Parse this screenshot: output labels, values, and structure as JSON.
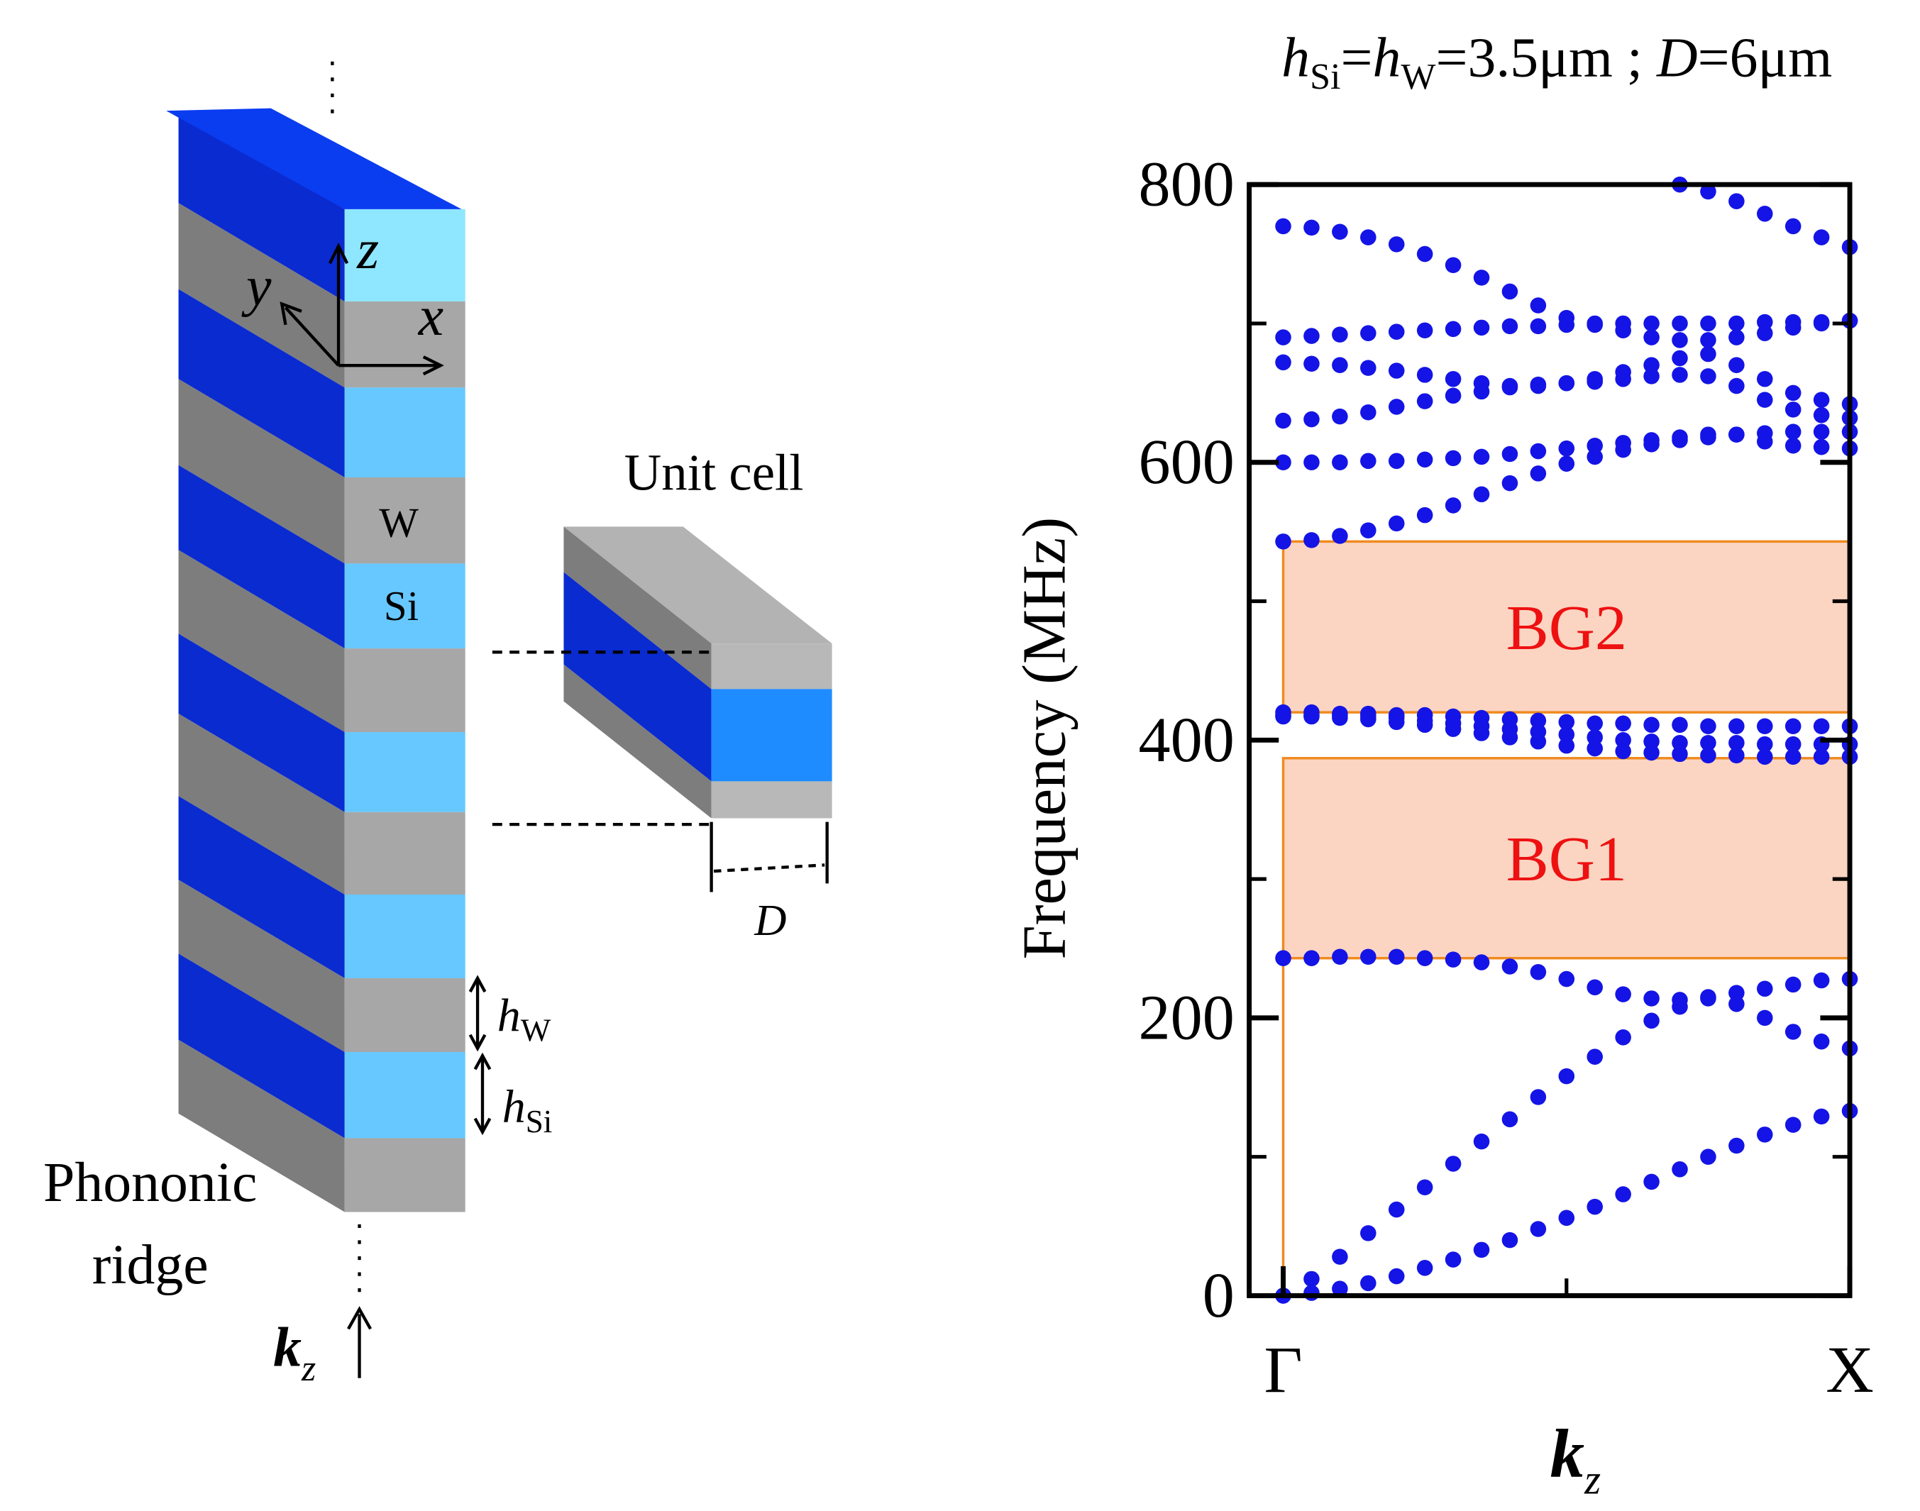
{
  "diagram": {
    "axes": [
      "z",
      "y",
      "x"
    ],
    "layer_w": "W",
    "layer_si": "Si",
    "unit_cell": "Unit cell",
    "period": "D",
    "h_w": [
      "h",
      "W"
    ],
    "h_si": [
      "h",
      "Si"
    ],
    "ridge": [
      "Phononic",
      "ridge"
    ],
    "kz": [
      "k",
      "z"
    ]
  },
  "chart_data": {
    "type": "scatter",
    "title": [
      "h",
      "Si",
      "=",
      "h",
      "W",
      "=3.5μm ; ",
      "D",
      "=6μm"
    ],
    "ylabel": "Frequency (MHz)",
    "xlabel": [
      "k",
      "z"
    ],
    "xlim": [
      -0.06,
      1
    ],
    "ylim": [
      0,
      800
    ],
    "xticks": [
      {
        "value": 0,
        "label": "Γ"
      },
      {
        "value": 1,
        "label": "X"
      }
    ],
    "xminorticks": [
      0.5
    ],
    "yticks": [
      0,
      200,
      400,
      600,
      800
    ],
    "yminorticks": [
      100,
      300,
      500,
      700
    ],
    "gaps": [
      {
        "label": "BG1",
        "range": [
          243,
          387
        ]
      },
      {
        "label": "BG2",
        "range": [
          420,
          543
        ]
      }
    ],
    "x": [
      0,
      0.05,
      0.1,
      0.15,
      0.2,
      0.25,
      0.3,
      0.35,
      0.4,
      0.45,
      0.5,
      0.55,
      0.6,
      0.65,
      0.7,
      0.75,
      0.8,
      0.85,
      0.9,
      0.95,
      1
    ],
    "series": [
      {
        "color": "#1414e6",
        "values": [
          0,
          2,
          5,
          9,
          14,
          20,
          26,
          33,
          40,
          48,
          56,
          64,
          73,
          82,
          91,
          100,
          108,
          116,
          123,
          129,
          133
        ]
      },
      {
        "color": "#1414e6",
        "values": [
          0,
          12,
          28,
          45,
          62,
          78,
          95,
          111,
          127,
          143,
          158,
          172,
          186,
          198,
          208,
          214,
          210,
          200,
          190,
          183,
          178
        ]
      },
      {
        "color": "#1414e6",
        "values": [
          243,
          243,
          244,
          244,
          244,
          243,
          242,
          240,
          237,
          233,
          228,
          222,
          217,
          214,
          213,
          215,
          218,
          221,
          224,
          227,
          228
        ]
      },
      {
        "color": "#1414e6",
        "values": [
          418,
          418,
          418,
          417,
          416,
          414,
          412,
          410,
          408,
          406,
          404,
          402,
          400,
          399,
          398,
          398,
          398,
          397,
          397,
          397,
          397
        ]
      },
      {
        "color": "#1414e6",
        "values": [
          420,
          420,
          419,
          419,
          418,
          418,
          417,
          416,
          415,
          414,
          413,
          412,
          412,
          411,
          411,
          410,
          410,
          410,
          410,
          410,
          410
        ]
      },
      {
        "color": "#1414e6",
        "values": [
          417,
          417,
          416,
          415,
          413,
          411,
          408,
          405,
          402,
          399,
          396,
          394,
          392,
          391,
          390,
          389,
          389,
          388,
          388,
          388,
          388
        ]
      },
      {
        "color": "#1414e6",
        "values": [
          543,
          544,
          547,
          551,
          556,
          562,
          569,
          577,
          585,
          592,
          599,
          604,
          609,
          613,
          616,
          618,
          620,
          621,
          622,
          622,
          622
        ]
      },
      {
        "color": "#1414e6",
        "values": [
          600,
          600,
          600,
          601,
          601,
          602,
          603,
          604,
          606,
          608,
          610,
          612,
          614,
          616,
          618,
          620,
          620,
          615,
          612,
          611,
          610
        ]
      },
      {
        "color": "#1414e6",
        "values": [
          630,
          631,
          633,
          636,
          640,
          644,
          648,
          651,
          654,
          656,
          657,
          658,
          660,
          662,
          663,
          662,
          655,
          645,
          638,
          634,
          632
        ]
      },
      {
        "color": "#1414e6",
        "values": [
          672,
          671,
          670,
          668,
          666,
          663,
          660,
          657,
          655,
          655,
          657,
          660,
          665,
          670,
          675,
          678,
          670,
          660,
          650,
          645,
          642
        ]
      },
      {
        "color": "#1414e6",
        "values": [
          690,
          691,
          692,
          693,
          694,
          695,
          696,
          697,
          698,
          698,
          699,
          699,
          700,
          700,
          700,
          700,
          700,
          701,
          701,
          701,
          702
        ]
      },
      {
        "color": "#1414e6",
        "values": [
          770,
          769,
          766,
          762,
          757,
          750,
          742,
          733,
          723,
          713,
          704,
          700,
          695,
          690,
          688,
          688,
          690,
          693,
          697,
          700,
          702
        ]
      },
      {
        "color": "#1414e6",
        "values": [
          null,
          null,
          null,
          null,
          null,
          null,
          null,
          null,
          null,
          null,
          null,
          null,
          null,
          null,
          800,
          795,
          788,
          779,
          770,
          762,
          755
        ]
      }
    ]
  }
}
